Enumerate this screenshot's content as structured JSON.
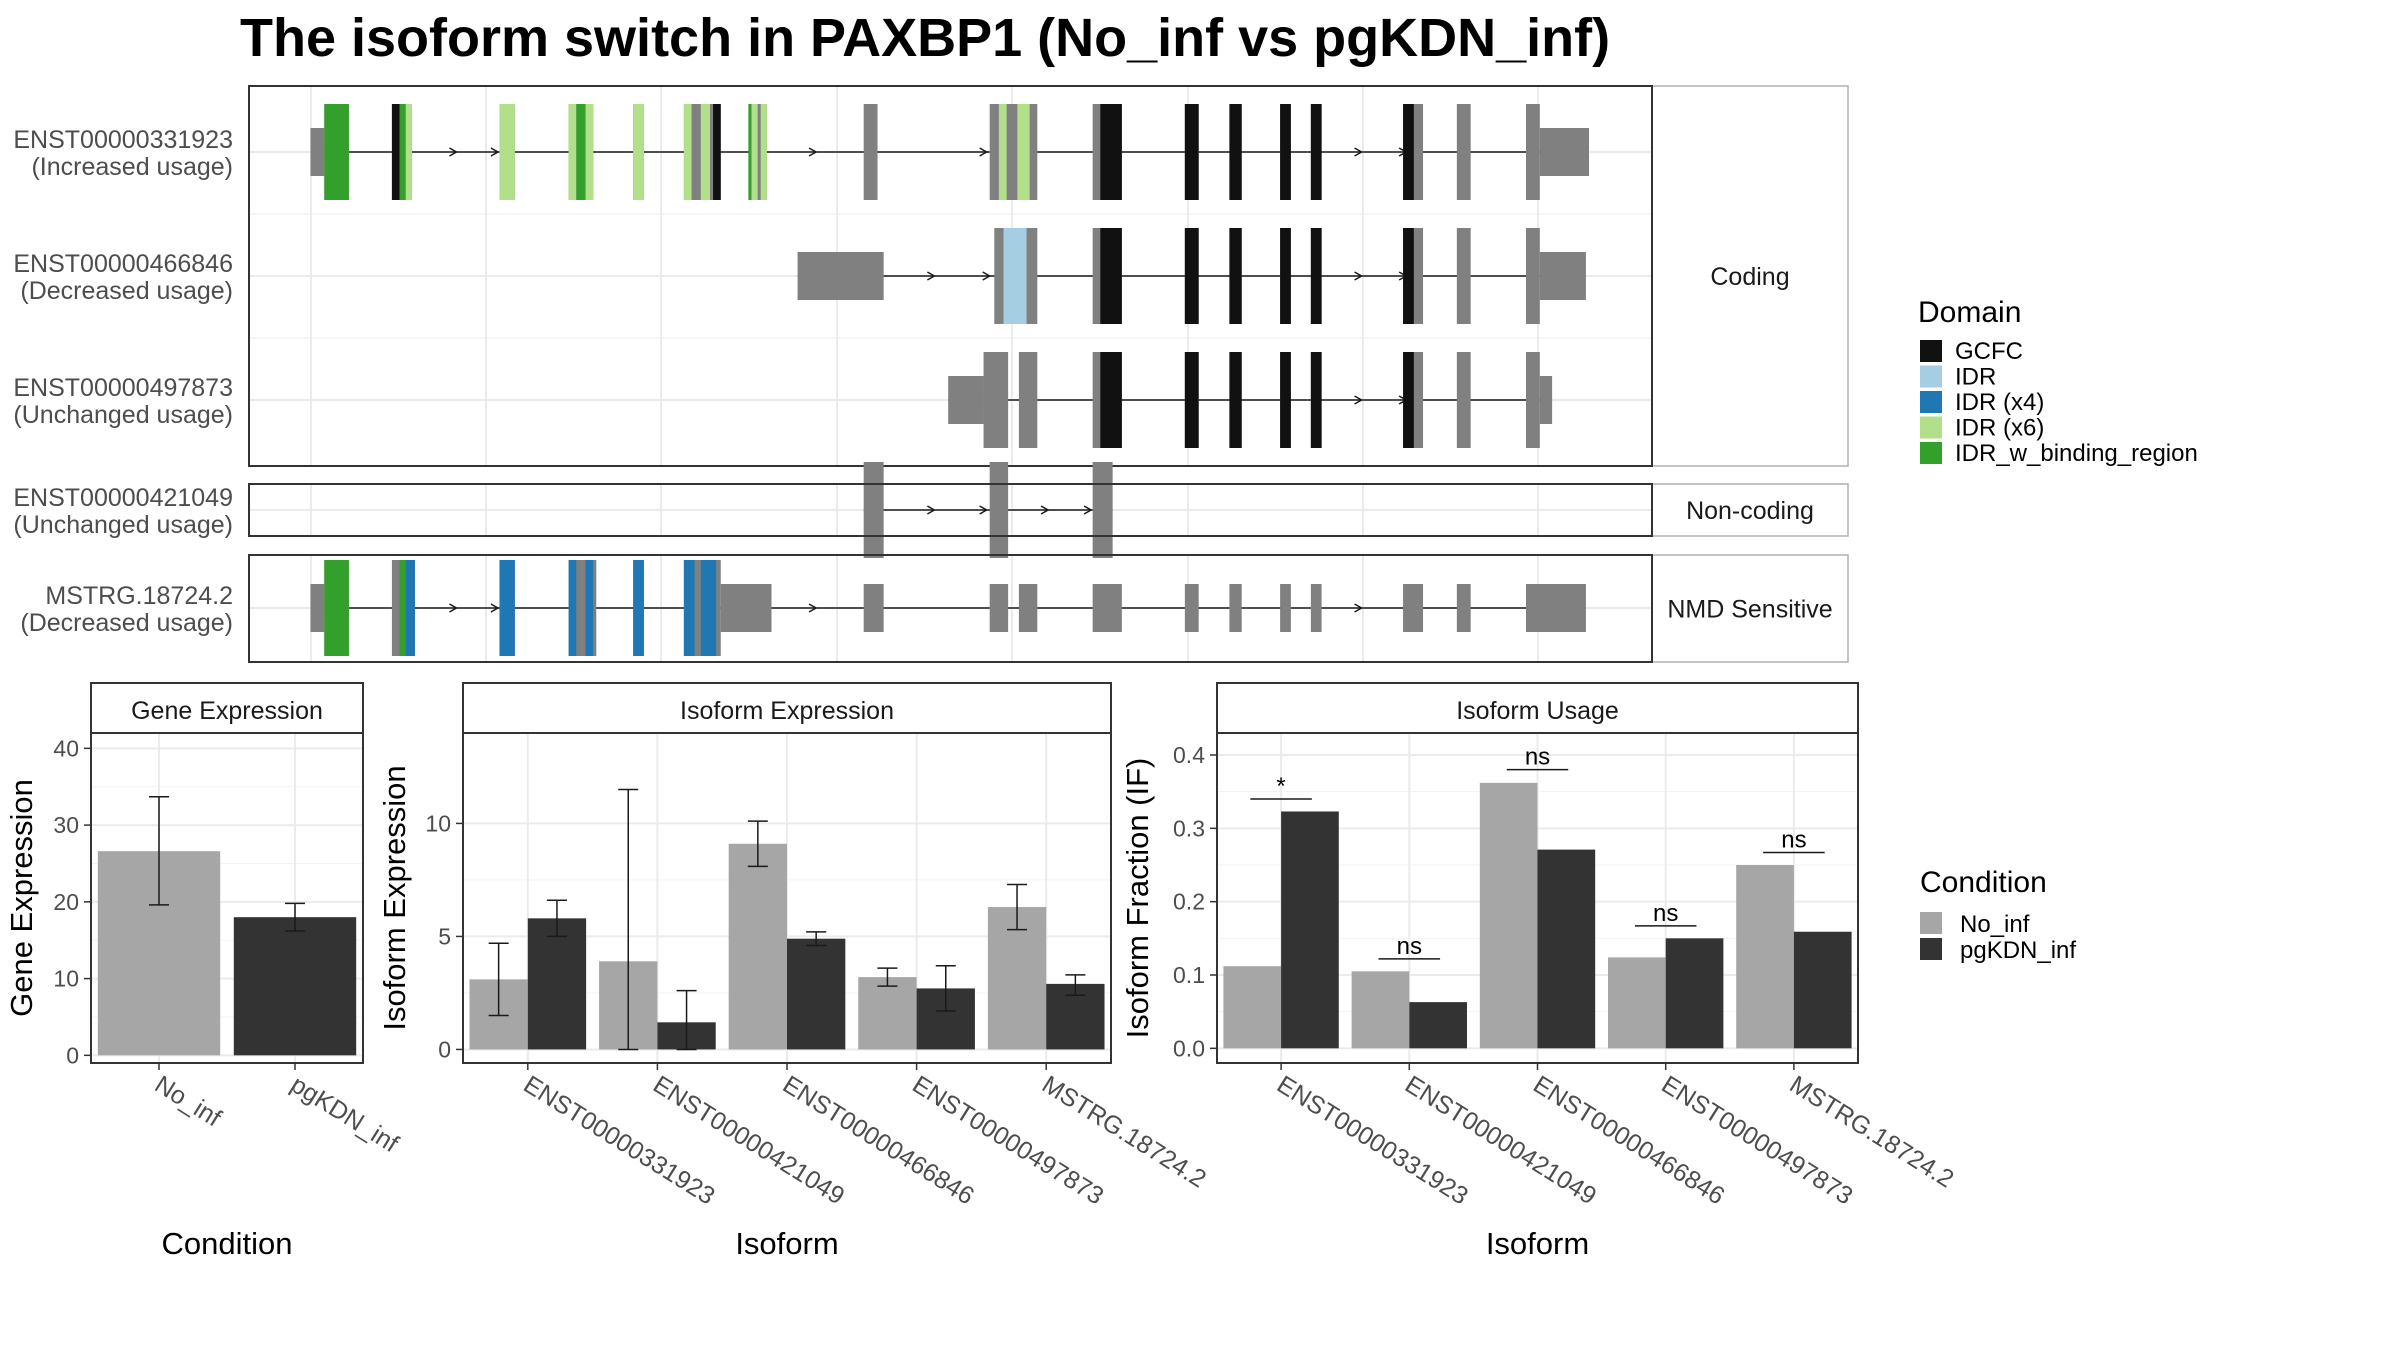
{
  "title": "The isoform switch in PAXBP1 (No_inf vs pgKDN_inf)",
  "colors": {
    "intron": "#1a1a1a",
    "exon": "#808080",
    "cond_a": "#a6a6a6",
    "cond_b": "#333333",
    "GCFC": "#111111",
    "IDR": "#a6cee3",
    "IDR (x4)": "#1f78b4",
    "IDR (x6)": "#b2df8a",
    "IDR_w_binding_region": "#33a02c"
  },
  "structure": {
    "groups": [
      {
        "label": "Coding",
        "tracks": [
          0,
          1,
          2
        ]
      },
      {
        "label": "Non-coding",
        "tracks": [
          3
        ]
      },
      {
        "label": "NMD Sensitive",
        "tracks": [
          4
        ]
      }
    ],
    "tracks": [
      {
        "id": "ENST00000331923",
        "usage": "(Increased usage)",
        "span": [
          202,
          1034
        ],
        "exons": [
          [
            202,
            211,
            "u"
          ],
          [
            211,
            227,
            "c"
          ],
          [
            255,
            268,
            "c"
          ],
          [
            325,
            335,
            "c"
          ],
          [
            370,
            386,
            "c"
          ],
          [
            412,
            419,
            "c"
          ],
          [
            445,
            469,
            "c"
          ],
          [
            487,
            499,
            "c"
          ],
          [
            562,
            571,
            "c"
          ],
          [
            644,
            675,
            "c"
          ],
          [
            711,
            730,
            "c"
          ],
          [
            771,
            780,
            "c"
          ],
          [
            800,
            808,
            "c"
          ],
          [
            833,
            840,
            "c"
          ],
          [
            853,
            860,
            "c"
          ],
          [
            913,
            926,
            "c"
          ],
          [
            948,
            957,
            "c"
          ],
          [
            993,
            1002,
            "c"
          ],
          [
            1002,
            1034,
            "u"
          ]
        ],
        "domains": [
          [
            211,
            227,
            "IDR_w_binding_region"
          ],
          [
            255,
            260,
            "GCFC"
          ],
          [
            260,
            264,
            "IDR_w_binding_region"
          ],
          [
            264,
            268,
            "IDR (x6)"
          ],
          [
            325,
            335,
            "IDR (x6)"
          ],
          [
            370,
            375,
            "IDR (x6)"
          ],
          [
            375,
            381,
            "IDR_w_binding_region"
          ],
          [
            381,
            386,
            "IDR (x6)"
          ],
          [
            412,
            419,
            "IDR (x6)"
          ],
          [
            445,
            450,
            "IDR (x6)"
          ],
          [
            456,
            462,
            "IDR (x6)"
          ],
          [
            464,
            469,
            "GCFC"
          ],
          [
            487,
            489,
            "IDR_w_binding_region"
          ],
          [
            489,
            493,
            "IDR (x6)"
          ],
          [
            495,
            499,
            "IDR (x6)"
          ],
          [
            650,
            655,
            "IDR (x6)"
          ],
          [
            662,
            670,
            "IDR (x6)"
          ],
          [
            716,
            730,
            "GCFC"
          ],
          [
            771,
            780,
            "GCFC"
          ],
          [
            800,
            808,
            "GCFC"
          ],
          [
            833,
            840,
            "GCFC"
          ],
          [
            853,
            860,
            "GCFC"
          ],
          [
            913,
            920,
            "GCFC"
          ]
        ],
        "arrows": [
          297,
          324,
          531,
          642,
          886,
          915
        ]
      },
      {
        "id": "ENST00000466846",
        "usage": "(Decreased usage)",
        "span": [
          519,
          1032
        ],
        "exons": [
          [
            519,
            575,
            "u"
          ],
          [
            647,
            675,
            "c"
          ],
          [
            711,
            730,
            "c"
          ],
          [
            771,
            780,
            "c"
          ],
          [
            800,
            808,
            "c"
          ],
          [
            833,
            840,
            "c"
          ],
          [
            853,
            860,
            "c"
          ],
          [
            913,
            926,
            "c"
          ],
          [
            948,
            957,
            "c"
          ],
          [
            993,
            1002,
            "c"
          ],
          [
            1002,
            1032,
            "u"
          ]
        ],
        "domains": [
          [
            653,
            668,
            "IDR"
          ],
          [
            716,
            730,
            "GCFC"
          ],
          [
            771,
            780,
            "GCFC"
          ],
          [
            800,
            808,
            "GCFC"
          ],
          [
            833,
            840,
            "GCFC"
          ],
          [
            853,
            860,
            "GCFC"
          ],
          [
            913,
            920,
            "GCFC"
          ]
        ],
        "arrows": [
          608,
          644,
          886,
          915
        ]
      },
      {
        "id": "ENST00000497873",
        "usage": "(Unchanged usage)",
        "span": [
          617,
          1010
        ],
        "exons": [
          [
            617,
            640,
            "u"
          ],
          [
            640,
            656,
            "c"
          ],
          [
            663,
            675,
            "c"
          ],
          [
            711,
            730,
            "c"
          ],
          [
            771,
            780,
            "c"
          ],
          [
            800,
            808,
            "c"
          ],
          [
            833,
            840,
            "c"
          ],
          [
            853,
            860,
            "c"
          ],
          [
            913,
            926,
            "c"
          ],
          [
            948,
            957,
            "c"
          ],
          [
            993,
            1002,
            "c"
          ],
          [
            1002,
            1010,
            "u"
          ]
        ],
        "domains": [
          [
            716,
            730,
            "GCFC"
          ],
          [
            771,
            780,
            "GCFC"
          ],
          [
            800,
            808,
            "GCFC"
          ],
          [
            833,
            840,
            "GCFC"
          ],
          [
            853,
            860,
            "GCFC"
          ],
          [
            913,
            920,
            "GCFC"
          ]
        ],
        "arrows": [
          886,
          915
        ]
      },
      {
        "id": "ENST00000421049",
        "usage": "(Unchanged usage)",
        "span": [
          562,
          724
        ],
        "exons": [
          [
            562,
            575,
            "c"
          ],
          [
            644,
            656,
            "c"
          ],
          [
            711,
            724,
            "c"
          ]
        ],
        "domains": [],
        "arrows": [
          608,
          642,
          682,
          710
        ]
      },
      {
        "id": "MSTRG.18724.2",
        "usage": "(Decreased usage)",
        "span": [
          202,
          1032
        ],
        "exons": [
          [
            202,
            211,
            "u"
          ],
          [
            211,
            227,
            "c"
          ],
          [
            255,
            270,
            "c"
          ],
          [
            325,
            335,
            "c"
          ],
          [
            370,
            388,
            "c"
          ],
          [
            412,
            419,
            "c"
          ],
          [
            445,
            469,
            "c"
          ],
          [
            469,
            502,
            "u"
          ],
          [
            562,
            575,
            "u"
          ],
          [
            644,
            656,
            "u"
          ],
          [
            663,
            675,
            "u"
          ],
          [
            711,
            730,
            "u"
          ],
          [
            771,
            780,
            "u"
          ],
          [
            800,
            808,
            "u"
          ],
          [
            833,
            840,
            "u"
          ],
          [
            853,
            860,
            "u"
          ],
          [
            913,
            926,
            "u"
          ],
          [
            948,
            957,
            "u"
          ],
          [
            993,
            1032,
            "u"
          ]
        ],
        "domains": [
          [
            211,
            227,
            "IDR_w_binding_region"
          ],
          [
            260,
            264,
            "IDR_w_binding_region"
          ],
          [
            264,
            270,
            "IDR (x4)"
          ],
          [
            325,
            335,
            "IDR (x4)"
          ],
          [
            370,
            375,
            "IDR (x4)"
          ],
          [
            381,
            386,
            "IDR (x4)"
          ],
          [
            412,
            419,
            "IDR (x4)"
          ],
          [
            445,
            452,
            "IDR (x4)"
          ],
          [
            456,
            466,
            "IDR (x4)"
          ]
        ],
        "arrows": [
          297,
          324,
          531,
          886
        ]
      }
    ]
  },
  "legend_domain": {
    "title": "Domain",
    "items": [
      "GCFC",
      "IDR",
      "IDR (x4)",
      "IDR (x6)",
      "IDR_w_binding_region"
    ]
  },
  "legend_condition": {
    "title": "Condition",
    "items": [
      "No_inf",
      "pgKDN_inf"
    ]
  },
  "chart_data": [
    {
      "type": "bar",
      "title": "Gene Expression",
      "xlabel": "Condition",
      "ylabel": "Gene Expression",
      "ylim": [
        -1,
        42
      ],
      "yticks": [
        0,
        10,
        20,
        30,
        40
      ],
      "categories": [
        "No_inf",
        "pgKDN_inf"
      ],
      "values": [
        26.6,
        18.0
      ],
      "error": [
        [
          19.6,
          33.7
        ],
        [
          16.2,
          19.8
        ]
      ]
    },
    {
      "type": "bar",
      "title": "Isoform Expression",
      "xlabel": "Isoform",
      "ylabel": "Isoform Expression",
      "ylim": [
        -0.6,
        14
      ],
      "yticks": [
        0,
        5,
        10
      ],
      "categories": [
        "ENST00000331923",
        "ENST00000421049",
        "ENST00000466846",
        "ENST00000497873",
        "MSTRG.18724.2"
      ],
      "series": [
        {
          "name": "No_inf",
          "values": [
            3.1,
            3.9,
            9.1,
            3.2,
            6.3
          ],
          "error": [
            [
              1.5,
              4.7
            ],
            [
              0.0,
              11.5
            ],
            [
              8.1,
              10.1
            ],
            [
              2.8,
              3.6
            ],
            [
              5.3,
              7.3
            ]
          ]
        },
        {
          "name": "pgKDN_inf",
          "values": [
            5.8,
            1.2,
            4.9,
            2.7,
            2.9
          ],
          "error": [
            [
              5.0,
              6.6
            ],
            [
              0.0,
              2.6
            ],
            [
              4.6,
              5.2
            ],
            [
              1.7,
              3.7
            ],
            [
              2.4,
              3.3
            ]
          ]
        }
      ]
    },
    {
      "type": "bar",
      "title": "Isoform Usage",
      "xlabel": "Isoform",
      "ylabel": "Isoform Fraction (IF)",
      "ylim": [
        -0.02,
        0.43
      ],
      "yticks": [
        0.0,
        0.1,
        0.2,
        0.3,
        0.4
      ],
      "categories": [
        "ENST00000331923",
        "ENST00000421049",
        "ENST00000466846",
        "ENST00000497873",
        "MSTRG.18724.2"
      ],
      "series": [
        {
          "name": "No_inf",
          "values": [
            0.112,
            0.105,
            0.362,
            0.124,
            0.25
          ]
        },
        {
          "name": "pgKDN_inf",
          "values": [
            0.323,
            0.063,
            0.271,
            0.15,
            0.159
          ]
        }
      ],
      "significance": [
        {
          "label": "*",
          "y": 0.34
        },
        {
          "label": "ns",
          "y": 0.122
        },
        {
          "label": "ns",
          "y": 0.38
        },
        {
          "label": "ns",
          "y": 0.167
        },
        {
          "label": "ns",
          "y": 0.267
        }
      ]
    }
  ]
}
